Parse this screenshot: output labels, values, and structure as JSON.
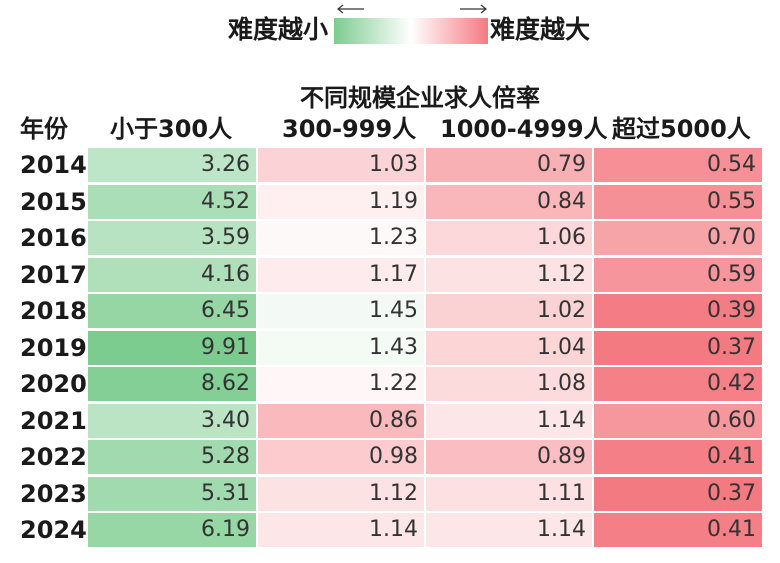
{
  "legend": {
    "left_label": "难度越小",
    "right_label": "难度越大",
    "left_color": "#7ccc8f",
    "right_color": "#f47a82"
  },
  "chart_data": {
    "type": "table",
    "subtitle": "不同规模企业求人倍率",
    "row_header": "年份",
    "columns": [
      "小于300人",
      "300-999人",
      "1000-4999人",
      "超过5000人"
    ],
    "rows": [
      "2014",
      "2015",
      "2016",
      "2017",
      "2018",
      "2019",
      "2020",
      "2021",
      "2022",
      "2023",
      "2024"
    ],
    "values": [
      [
        3.26,
        1.03,
        0.79,
        0.54
      ],
      [
        4.52,
        1.19,
        0.84,
        0.55
      ],
      [
        3.59,
        1.23,
        1.06,
        0.7
      ],
      [
        4.16,
        1.17,
        1.12,
        0.59
      ],
      [
        6.45,
        1.45,
        1.02,
        0.39
      ],
      [
        9.91,
        1.43,
        1.04,
        0.37
      ],
      [
        8.62,
        1.22,
        1.08,
        0.42
      ],
      [
        3.4,
        0.86,
        1.14,
        0.6
      ],
      [
        5.28,
        0.98,
        0.89,
        0.41
      ],
      [
        5.31,
        1.12,
        1.11,
        0.37
      ],
      [
        6.19,
        1.14,
        1.14,
        0.41
      ]
    ],
    "colormap": {
      "low": "#f47a82",
      "mid": "#ffffff",
      "high": "#7ccc8f",
      "center": 1.25
    }
  }
}
